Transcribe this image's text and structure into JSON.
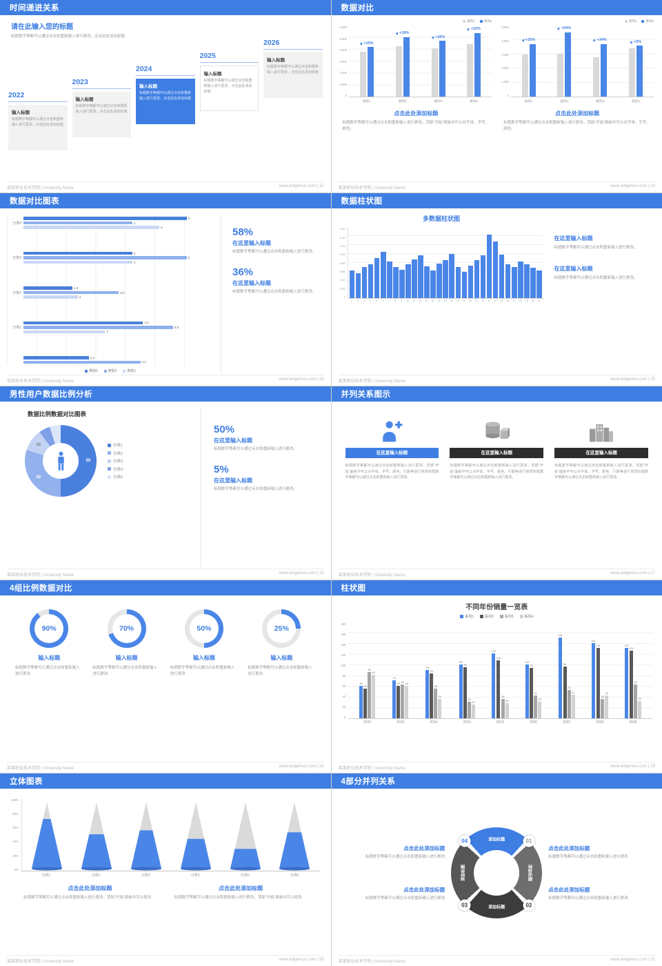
{
  "theme": {
    "header_blue": "#3e7ee2",
    "accent_blue": "#3e7ee2",
    "bar_blue": "#4a86e8",
    "bar_gray": "#d9d9d9",
    "series_colors_s14": [
      "#4a80dd",
      "#8fb0ec",
      "#c9d8f5"
    ],
    "series_colors_s19": [
      "#4a86e8",
      "#595959",
      "#a6a6a6",
      "#d2d2d2"
    ],
    "donut_colors": [
      "#4a80dd",
      "#93b2ed",
      "#c3d3f4",
      "#7fa0e5",
      "#dce6fa"
    ],
    "ring_blue": "#4a86e8",
    "ring_track": "#e6e6e6",
    "seg_colors": [
      "#3e7ee2",
      "#6e6e6e",
      "#3c3c3c",
      "#565656"
    ]
  },
  "footer": {
    "school": "某某职业技术学院 | University Name",
    "site": "www.aotgenius.com",
    "sep": "|"
  },
  "slides": {
    "s12": {
      "title": "时间递进关系",
      "page": "12",
      "heading": "请在此输入您的标题",
      "subheading": "标题数字等都可以通过点击和重新输入进行更改，点击此处添加标题",
      "box_title": "输入标题",
      "box_text": "标题数字等都可以通过点击和重新输入进行更改，点击此处添加标题",
      "years": [
        "2022",
        "2023",
        "2024",
        "2025",
        "2026"
      ],
      "highlight_index": 2
    },
    "s13": {
      "title": "数据对比",
      "page": "13",
      "charts": [
        {
          "legend": [
            "系列1",
            "系列2"
          ],
          "categories": [
            "类别1",
            "类别2",
            "类别3",
            "类别4"
          ],
          "series1": [
            3800,
            4250,
            4050,
            4400
          ],
          "series2": [
            4180,
            5015,
            4698,
            5368
          ],
          "labels": [
            "+10%",
            "+18%",
            "+16%",
            "+22%"
          ],
          "ymax": 6000,
          "yticks": [
            "6,000",
            "5,000",
            "4,000",
            "3,000",
            "2,000",
            "1,000",
            "0"
          ]
        },
        {
          "legend": [
            "系列1",
            "系列2"
          ],
          "categories": [
            "类别1",
            "类别2",
            "类别3",
            "类别4"
          ],
          "series1": [
            2960,
            3000,
            2770,
            3400
          ],
          "series2": [
            3700,
            4500,
            3710,
            3570
          ],
          "labels": [
            "+25%",
            "+50%",
            "+34%",
            "+5%"
          ],
          "ymax": 5000,
          "yticks": [
            "5,000",
            "4,000",
            "3,000",
            "2,000",
            "1,000",
            "0"
          ]
        }
      ],
      "blocks": [
        {
          "heading": "点击此处添加标题",
          "text": "标题数字等都可以通过点击和重新输入进行更改，顶部“开始”面板中可以对字体、字号、颜色。"
        },
        {
          "heading": "点击此处添加标题",
          "text": "标题数字等都可以通过点击和重新输入进行更改，顶部“开始”面板中可以对字体、字号、颜色。"
        }
      ]
    },
    "s14": {
      "title": "数据对比图表",
      "page": "14",
      "chart": {
        "xmax": 7,
        "legend": [
          "类别3",
          "类别2",
          "类别1"
        ],
        "groups": [
          {
            "label": "分类4",
            "values": [
              6,
              4,
              5
            ]
          },
          {
            "label": "分类3",
            "values": [
              4,
              6,
              4
            ]
          },
          {
            "label": "分类2",
            "values": [
              1.8,
              3.5,
              2
            ]
          },
          {
            "label": "分类1",
            "values": [
              4.4,
              5.5,
              3
            ]
          },
          {
            "label": "",
            "values": [
              2.4,
              4.3
            ]
          }
        ]
      },
      "stats": [
        {
          "value": "58%",
          "heading": "在这里输入标题",
          "text": "标题数字等都可以通过点击和重新输入进行更改。"
        },
        {
          "value": "36%",
          "heading": "在这里输入标题",
          "text": "标题数字等都可以通过点击和重新输入进行更改。"
        }
      ]
    },
    "s15": {
      "title": "数据柱状图",
      "page": "15",
      "chart": {
        "title": "多数据柱状图",
        "ymax": 1600,
        "yticks": [
          "1.6K",
          "1.4K",
          "1.2K",
          "1.0K",
          "0.8K",
          "0.6K",
          "0.4K",
          "0.2K",
          "0"
        ],
        "xlabels": [
          "1",
          "2",
          "3",
          "4",
          "5",
          "6",
          "7",
          "8",
          "9",
          "10",
          "11",
          "12",
          "13",
          "14",
          "15",
          "16",
          "17",
          "18",
          "19",
          "20",
          "21",
          "22",
          "23",
          "24",
          "25",
          "26",
          "27",
          "28",
          "29",
          "30",
          "31"
        ],
        "values": [
          620,
          560,
          700,
          760,
          900,
          1040,
          830,
          700,
          640,
          760,
          880,
          960,
          710,
          620,
          780,
          860,
          990,
          700,
          600,
          730,
          850,
          960,
          1430,
          1280,
          980,
          760,
          700,
          820,
          770,
          680,
          620
        ]
      },
      "blocks": [
        {
          "heading": "在这里输入标题",
          "text": "标题数字等都可以通过点击和重新输入进行更改。"
        },
        {
          "heading": "在这里输入标题",
          "text": "标题数字等都可以通过点击和重新输入进行更改。"
        }
      ]
    },
    "s16": {
      "title": "男性用户数据比例分析",
      "page": "16",
      "chart_title": "数据比例数据对比图表",
      "donut": {
        "segments": [
          {
            "name": "分类1",
            "value": 50,
            "label": "50"
          },
          {
            "name": "分类2",
            "value": 30,
            "label": "30"
          },
          {
            "name": "分类3",
            "value": 10,
            "label": "10"
          },
          {
            "name": "分类4",
            "value": 5,
            "label": ""
          },
          {
            "name": "分类5",
            "value": 5,
            "label": ""
          }
        ]
      },
      "legend": [
        "分类1",
        "分类2",
        "分类3",
        "分类4",
        "分类5"
      ],
      "stats": [
        {
          "value": "50%",
          "heading": "在这里输入标题",
          "text": "标题数字等都可以通过点击和重新输入进行更改。"
        },
        {
          "value": "5%",
          "heading": "在这里输入标题",
          "text": "标题数字等都可以通过点击和重新输入进行更改。"
        }
      ]
    },
    "s17": {
      "title": "并列关系图示",
      "page": "17",
      "columns": [
        {
          "icon": "person-plus-icon",
          "box": "在这里输入标题",
          "highlight": true,
          "text": "标题数字等都可以通过点击和重新输入进行更改，顶部“开始”面板中可以对字体、字号、颜色、行距等进行修改标题数字等都可以通过点击和重新输入进行更改。"
        },
        {
          "icon": "cylinder-box-icon",
          "box": "在这里输入标题",
          "highlight": false,
          "text": "标题数字等都可以通过点击和重新输入进行更改，顶部“开始”面板中可以对字体、字号、颜色、行距等进行修改标题数字等都可以通过点击和重新输入进行更改。"
        },
        {
          "icon": "building-icon",
          "box": "在这里输入标题",
          "highlight": false,
          "text": "标题数字等都可以通过点击和重新输入进行更改，顶部“开始”面板中可以对字体、字号、颜色、行距等进行修改标题数字等都可以通过点击和重新输入进行更改。"
        }
      ]
    },
    "s18": {
      "title": "4组比例数据对比",
      "page": "18",
      "rings": [
        {
          "percent": 90,
          "label": "90%",
          "heading": "输入标题",
          "text": "标题数字等都可以通过点击和重新输入进行更改"
        },
        {
          "percent": 70,
          "label": "70%",
          "heading": "输入标题",
          "text": "标题数字等都可以通过点击和重新输入进行更改"
        },
        {
          "percent": 50,
          "label": "50%",
          "heading": "输入标题",
          "text": "标题数字等都可以通过点击和重新输入进行更改"
        },
        {
          "percent": 25,
          "label": "25%",
          "heading": "输入标题",
          "text": "标题数字等都可以通过点击和重新输入进行更改"
        }
      ]
    },
    "s19": {
      "title": "柱状图",
      "page": "19",
      "chart": {
        "title": "不同年份销量一览表",
        "legend": [
          "系列1",
          "系列2",
          "系列3",
          "系列4"
        ],
        "categories": [
          "2010",
          "2012",
          "2014",
          "2016",
          "2018",
          "2020",
          "2022",
          "2024",
          "2026"
        ],
        "series": [
          {
            "name": "系列1",
            "values": [
              60,
              70,
              90,
              100,
              120,
              100,
              150,
              140,
              130
            ]
          },
          {
            "name": "系列2",
            "values": [
              55,
              60,
              83,
              95,
              108,
              93,
              96,
              130,
              125
            ]
          },
          {
            "name": "系列3",
            "values": [
              85,
              63,
              55,
              30,
              35,
              42,
              52,
              36,
              62
            ]
          },
          {
            "name": "系列4",
            "values": [
              80,
              60,
              35,
              25,
              28,
              30,
              43,
              42,
              32
            ]
          }
        ],
        "ymax": 180,
        "yticks": [
          "180",
          "160",
          "140",
          "120",
          "100",
          "80",
          "60",
          "40",
          "20",
          "0"
        ]
      }
    },
    "s20": {
      "title": "立体图表",
      "page": "20",
      "chart": {
        "categories": [
          "分类1",
          "分类2",
          "分类3",
          "分类4",
          "分类5",
          "分类6"
        ],
        "fill_percent": [
          75,
          52,
          58,
          45,
          30,
          55
        ],
        "yticks": [
          "100%",
          "80%",
          "60%",
          "40%",
          "20%",
          "0%"
        ]
      },
      "blocks": [
        {
          "heading": "点击此处添加标题",
          "text": "标题数字等都可以通过点击和重新输入进行更改，顶部“开始”面板中可以修改"
        },
        {
          "heading": "点击此处添加标题",
          "text": "标题数字等都可以通过点击和重新输入进行更改，顶部“开始”面板中可以修改"
        }
      ]
    },
    "s21": {
      "title": "4部分并列关系",
      "page": "21",
      "seg_label": "添加标题",
      "numbers": [
        {
          "label": "01",
          "color": "#9a9a9a"
        },
        {
          "label": "02",
          "color": "#3a3a3a"
        },
        {
          "label": "03",
          "color": "#3a3a3a"
        },
        {
          "label": "04",
          "color": "#3e7ee2"
        }
      ],
      "blocks": [
        {
          "heading": "点击此处添加标题",
          "text": "标题数字等都可以通过点击和重新输入进行更改"
        },
        {
          "heading": "点击此处添加标题",
          "text": "标题数字等都可以通过点击和重新输入进行更改"
        },
        {
          "heading": "点击此处添加标题",
          "text": "标题数字等都可以通过点击和重新输入进行更改"
        },
        {
          "heading": "点击此处添加标题",
          "text": "标题数字等都可以通过点击和重新输入进行更改"
        }
      ]
    }
  }
}
